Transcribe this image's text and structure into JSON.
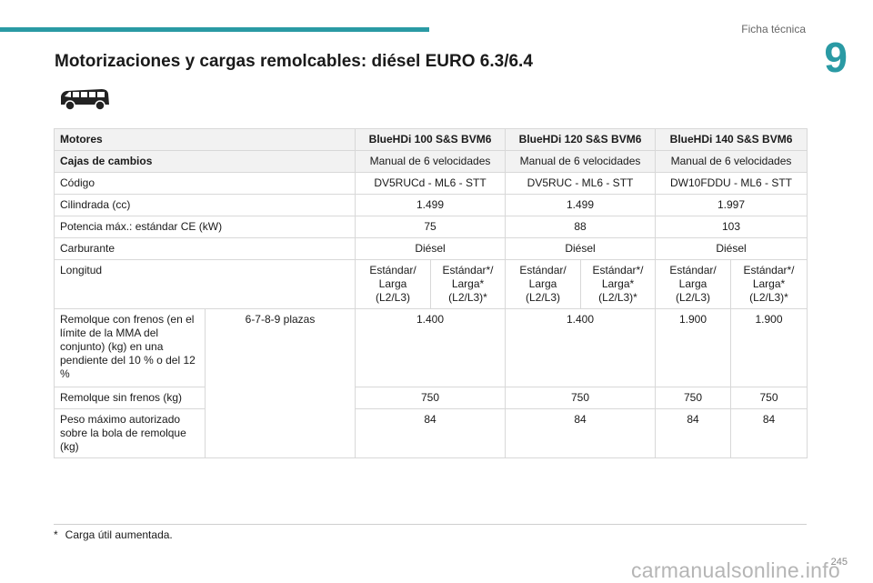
{
  "header": {
    "section": "Ficha técnica",
    "chapter": "9",
    "title": "Motorizaciones y cargas remolcables: diésel EURO 6.3/6.4"
  },
  "table": {
    "motores": {
      "label": "Motores",
      "values": [
        "BlueHDi 100 S&S BVM6",
        "BlueHDi 120 S&S BVM6",
        "BlueHDi 140 S&S BVM6"
      ]
    },
    "cajas": {
      "label": "Cajas de cambios",
      "values": [
        "Manual de 6 velocidades",
        "Manual de 6 velocidades",
        "Manual de 6 velocidades"
      ]
    },
    "codigo": {
      "label": "Código",
      "values": [
        "DV5RUCd - ML6 - STT",
        "DV5RUC - ML6 - STT",
        "DW10FDDU - ML6 - STT"
      ]
    },
    "cilindrada": {
      "label": "Cilindrada (cc)",
      "values": [
        "1.499",
        "1.499",
        "1.997"
      ]
    },
    "potencia": {
      "label": "Potencia máx.: estándar CE (kW)",
      "values": [
        "75",
        "88",
        "103"
      ]
    },
    "carburante": {
      "label": "Carburante",
      "values": [
        "Diésel",
        "Diésel",
        "Diésel"
      ]
    },
    "longitud": {
      "label": "Longitud",
      "values": [
        "Estándar/ Larga (L2/L3)",
        "Estándar*/ Larga* (L2/L3)*",
        "Estándar/ Larga (L2/L3)",
        "Estándar*/ Larga* (L2/L3)*",
        "Estándar/ Larga (L2/L3)",
        "Estándar*/ Larga* (L2/L3)*"
      ]
    },
    "plazas": "6-7-8-9 plazas",
    "remolque_frenos": {
      "label": "Remolque con frenos (en el límite de la MMA del conjunto) (kg) en una pendiente del 10 % o del 12 %",
      "values": [
        "1.400",
        "1.400",
        "1.900",
        "1.900"
      ]
    },
    "remolque_sin_frenos": {
      "label": "Remolque sin frenos (kg)",
      "values": [
        "750",
        "750",
        "750",
        "750"
      ]
    },
    "peso_bola": {
      "label": "Peso máximo autorizado sobre la bola de remolque (kg)",
      "values": [
        "84",
        "84",
        "84",
        "84"
      ]
    }
  },
  "footnote": {
    "mark": "*",
    "text": "Carga útil aumentada."
  },
  "page_number": "245",
  "watermark": "carmanualsonline.info"
}
